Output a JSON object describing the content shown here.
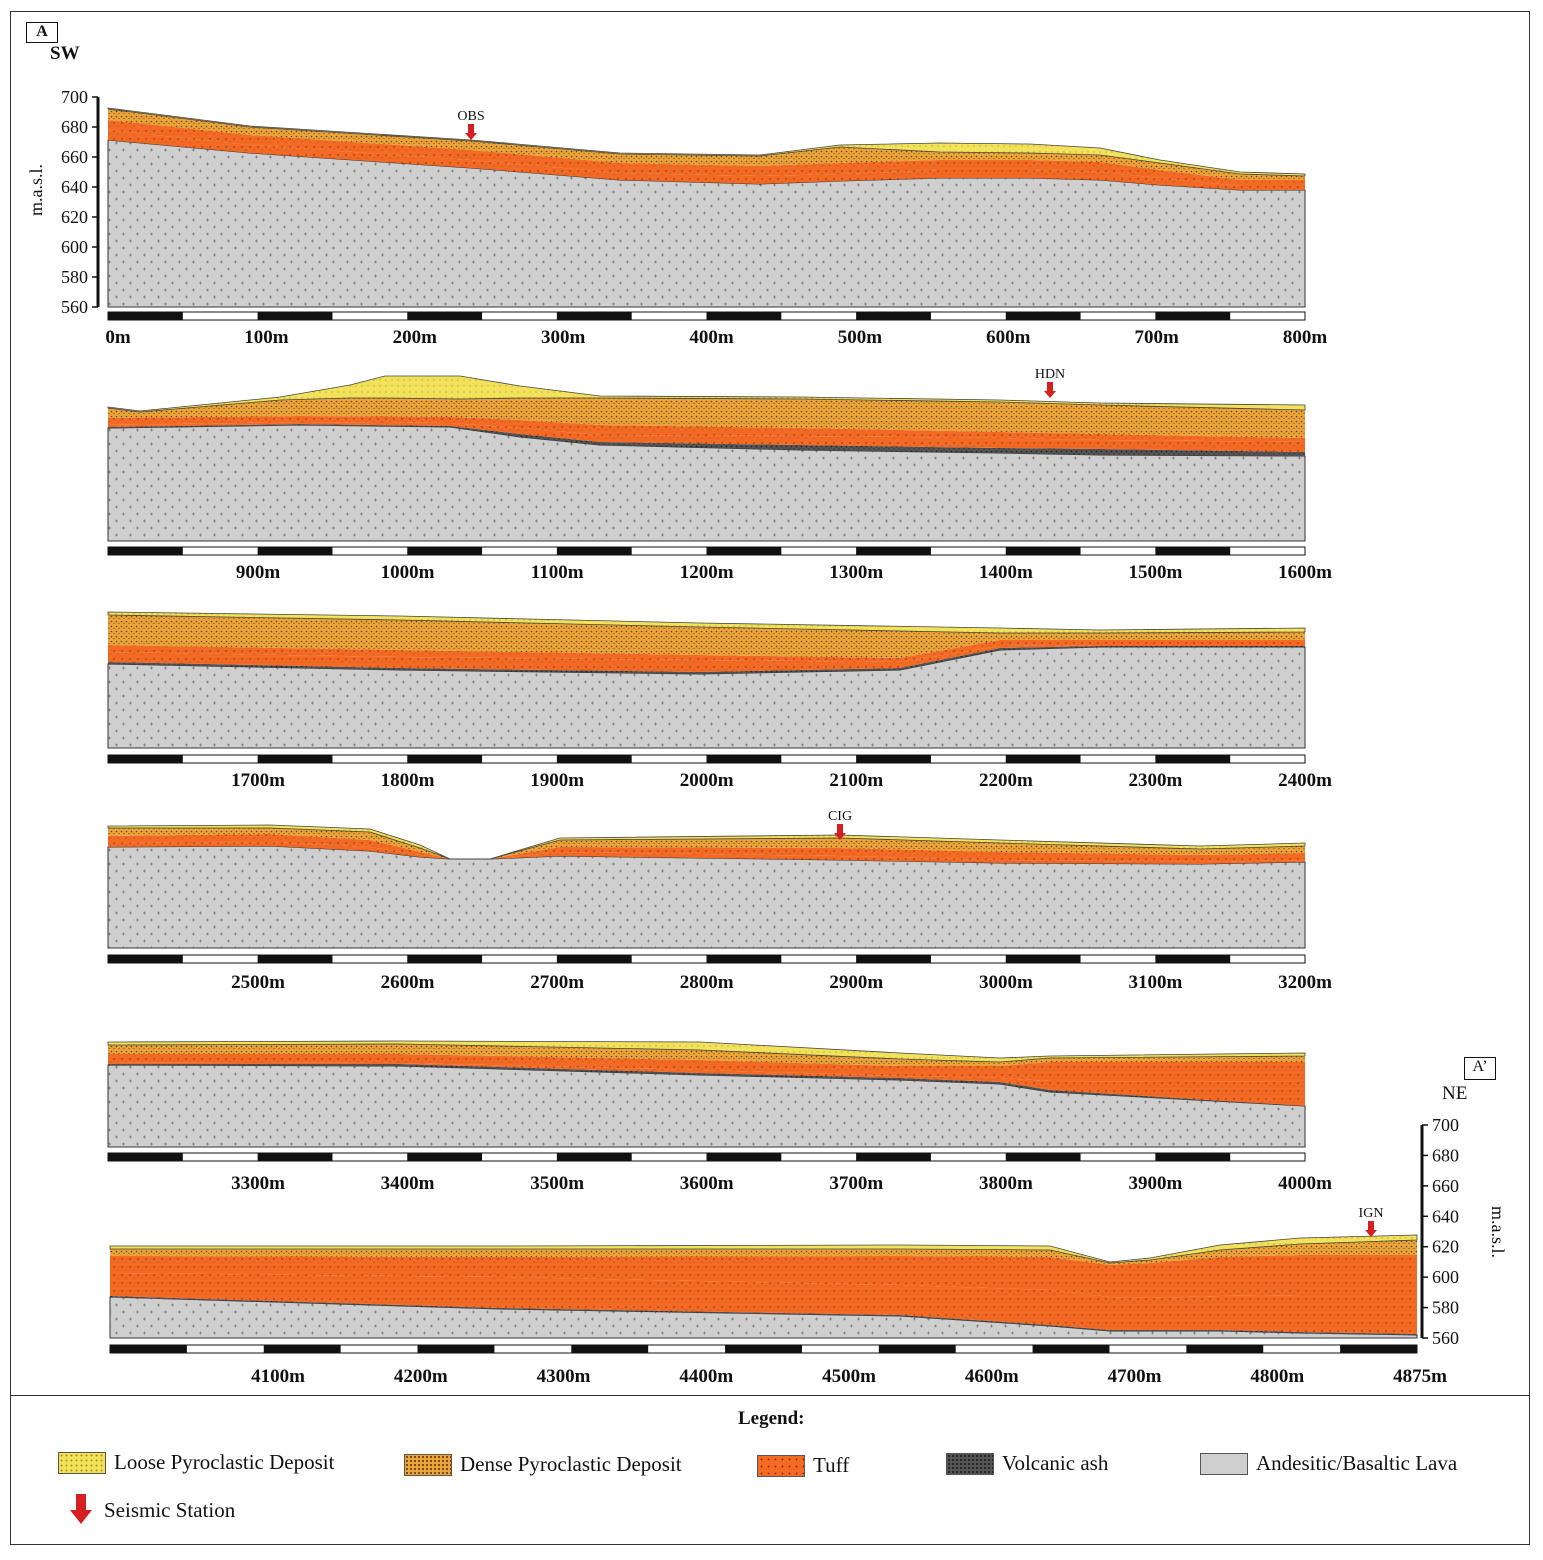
{
  "panel": {
    "start_label": "A",
    "end_label": "A’",
    "start_dir": "SW",
    "end_dir": "NE"
  },
  "y_axis": {
    "label": "m.a.s.l.",
    "ticks": [
      700,
      680,
      660,
      640,
      620,
      600,
      580,
      560
    ]
  },
  "segments": [
    {
      "ticks": [
        "0m",
        "100m",
        "200m",
        "300m",
        "400m",
        "500m",
        "600m",
        "700m",
        "800m"
      ],
      "stations": [
        {
          "name": "OBS"
        }
      ]
    },
    {
      "ticks": [
        "900m",
        "1000m",
        "1100m",
        "1200m",
        "1300m",
        "1400m",
        "1500m",
        "1600m"
      ],
      "stations": [
        {
          "name": "HDN"
        }
      ]
    },
    {
      "ticks": [
        "1700m",
        "1800m",
        "1900m",
        "2000m",
        "2100m",
        "2200m",
        "2300m",
        "2400m"
      ],
      "stations": []
    },
    {
      "ticks": [
        "2500m",
        "2600m",
        "2700m",
        "2800m",
        "2900m",
        "3000m",
        "3100m",
        "3200m"
      ],
      "stations": [
        {
          "name": "CIG"
        }
      ]
    },
    {
      "ticks": [
        "3300m",
        "3400m",
        "3500m",
        "3600m",
        "3700m",
        "3800m",
        "3900m",
        "4000m"
      ],
      "stations": []
    },
    {
      "ticks": [
        "4100m",
        "4200m",
        "4300m",
        "4400m",
        "4500m",
        "4600m",
        "4700m",
        "4800m",
        "4875m"
      ],
      "stations": [
        {
          "name": "IGN"
        }
      ]
    }
  ],
  "legend": {
    "title": "Legend:",
    "items": [
      {
        "key": "loose",
        "label": "Loose Pyroclastic Deposit"
      },
      {
        "key": "dense",
        "label": "Dense Pyroclastic Deposit"
      },
      {
        "key": "tuff",
        "label": "Tuff"
      },
      {
        "key": "ash",
        "label": "Volcanic ash"
      },
      {
        "key": "lava",
        "label": "Andesitic/Basaltic Lava"
      }
    ],
    "station_label": "Seismic Station"
  },
  "colors": {
    "loose": "#f2e15a",
    "dense": "#e9a43a",
    "tuff": "#f36a24",
    "ash": "#555555",
    "lava": "#cfcfcf",
    "station": "#d42020"
  }
}
